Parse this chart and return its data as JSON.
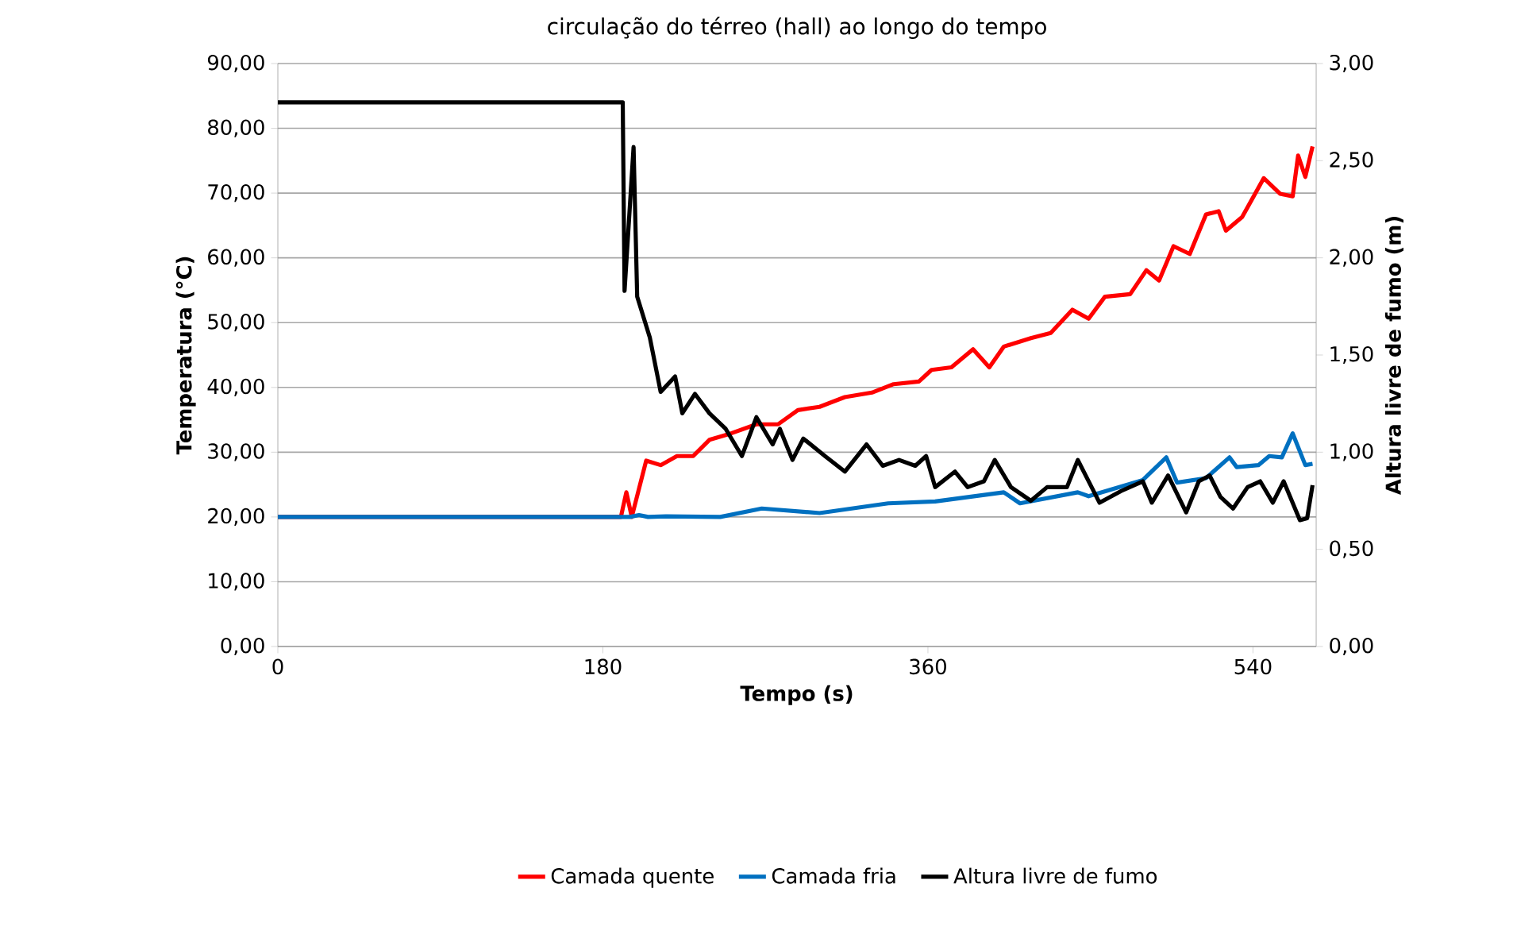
{
  "chart_data": {
    "type": "line",
    "title": "circulação do térreo (hall) ao longo do tempo",
    "xlabel": "Tempo (s)",
    "ylabel": "Temperatura (°C)",
    "y2label": "Altura livre de fumo (m)",
    "xlim": [
      0,
      575
    ],
    "xticks": [
      0,
      180,
      360,
      540
    ],
    "ylim": [
      0,
      90
    ],
    "yticks": [
      {
        "value": 0,
        "label": "0,00"
      },
      {
        "value": 10,
        "label": "10,00"
      },
      {
        "value": 20,
        "label": "20,00"
      },
      {
        "value": 30,
        "label": "30,00"
      },
      {
        "value": 40,
        "label": "40,00"
      },
      {
        "value": 50,
        "label": "50,00"
      },
      {
        "value": 60,
        "label": "60,00"
      },
      {
        "value": 70,
        "label": "70,00"
      },
      {
        "value": 80,
        "label": "80,00"
      },
      {
        "value": 90,
        "label": "90,00"
      }
    ],
    "y2lim": [
      0,
      3
    ],
    "y2ticks": [
      {
        "value": 0,
        "label": "0,00"
      },
      {
        "value": 0.5,
        "label": "0,50"
      },
      {
        "value": 1,
        "label": "1,00"
      },
      {
        "value": 1.5,
        "label": "1,50"
      },
      {
        "value": 2,
        "label": "2,00"
      },
      {
        "value": 2.5,
        "label": "2,50"
      },
      {
        "value": 3,
        "label": "3,00"
      }
    ],
    "grid": "y",
    "legend": "bottom",
    "marker": "none",
    "line_style": "solid",
    "series": [
      {
        "name": "Camada quente",
        "color": "#ff0000",
        "x": [
          0,
          190,
          191,
          193,
          196,
          204,
          212,
          221,
          230,
          239,
          251,
          265,
          277,
          288,
          300,
          314,
          329,
          341,
          355,
          362,
          373,
          385,
          394,
          402,
          417,
          428,
          440,
          449,
          458,
          472,
          481,
          488,
          496,
          505,
          514,
          521,
          525,
          534,
          546,
          555,
          562,
          565,
          569,
          573
        ],
        "values": [
          20,
          20,
          21.3,
          23.8,
          20,
          28.7,
          28,
          29.4,
          29.4,
          31.9,
          32.9,
          34.3,
          34.3,
          36.5,
          37,
          38.5,
          39.2,
          40.5,
          40.9,
          42.7,
          43.1,
          45.9,
          43.1,
          46.3,
          47.6,
          48.4,
          52,
          50.6,
          54,
          54.4,
          58.1,
          56.5,
          61.8,
          60.6,
          66.7,
          67.2,
          64.2,
          66.3,
          72.3,
          69.9,
          69.5,
          75.8,
          72.5,
          77.2
        ]
      },
      {
        "name": "Camada fria",
        "color": "#0070c0",
        "x": [
          0,
          195,
          200,
          205,
          215,
          245,
          268,
          300,
          338,
          364,
          402,
          411,
          443,
          449,
          479,
          492,
          498,
          514,
          527,
          531,
          543,
          549,
          556,
          562,
          569,
          573
        ],
        "values": [
          20,
          20,
          20.3,
          20,
          20.1,
          20,
          21.3,
          20.6,
          22.1,
          22.4,
          23.8,
          22.1,
          23.8,
          23.2,
          25.7,
          29.2,
          25.3,
          26,
          29.2,
          27.7,
          28,
          29.4,
          29.2,
          32.9,
          28,
          28.2
        ]
      },
      {
        "name": "Altura livre de fumo",
        "color": "#000000",
        "axis": "y2",
        "x": [
          0,
          191,
          192,
          197,
          199,
          206,
          212,
          220,
          224,
          231,
          239,
          248,
          257,
          265,
          274,
          278,
          285,
          291,
          303,
          314,
          326,
          335,
          344,
          353,
          359,
          364,
          375,
          382,
          391,
          397,
          406,
          417,
          426,
          437,
          443,
          449,
          455,
          467,
          479,
          484,
          493,
          503,
          510,
          516,
          522,
          529,
          537,
          544,
          551,
          557,
          566,
          570,
          573
        ],
        "values": [
          2.8,
          2.8,
          1.83,
          2.57,
          1.8,
          1.59,
          1.31,
          1.39,
          1.2,
          1.3,
          1.2,
          1.12,
          0.98,
          1.18,
          1.04,
          1.12,
          0.96,
          1.07,
          0.98,
          0.9,
          1.04,
          0.93,
          0.96,
          0.93,
          0.98,
          0.82,
          0.9,
          0.82,
          0.85,
          0.96,
          0.82,
          0.75,
          0.82,
          0.82,
          0.96,
          0.85,
          0.74,
          0.8,
          0.85,
          0.74,
          0.88,
          0.69,
          0.85,
          0.88,
          0.77,
          0.71,
          0.82,
          0.85,
          0.74,
          0.85,
          0.65,
          0.66,
          0.83
        ]
      }
    ]
  }
}
